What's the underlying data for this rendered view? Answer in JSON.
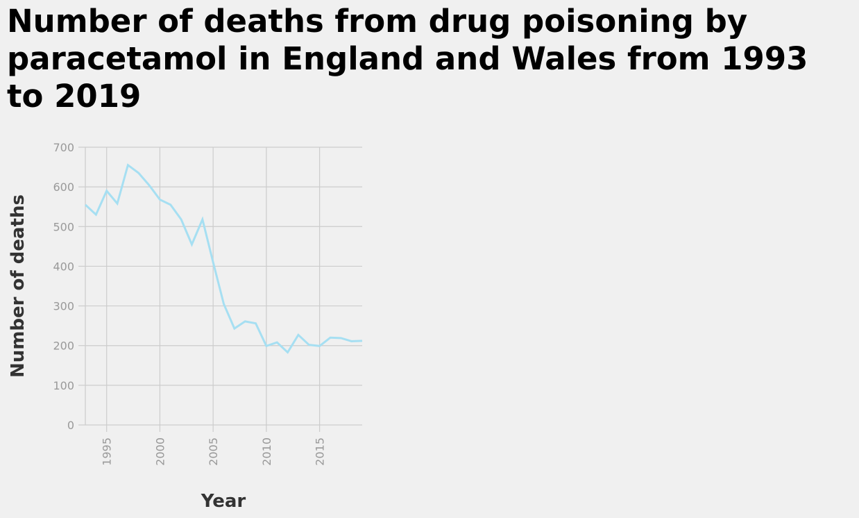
{
  "chart_data": {
    "type": "line",
    "title": "Number of deaths from drug poisoning by paracetamol in England and Wales from 1993 to 2019",
    "xlabel": "Year",
    "ylabel": "Number of deaths",
    "xlim": [
      1993,
      2019
    ],
    "ylim": [
      0,
      700
    ],
    "xticks": [
      1995,
      2000,
      2005,
      2010,
      2015
    ],
    "yticks": [
      0,
      100,
      200,
      300,
      400,
      500,
      600,
      700
    ],
    "grid": true,
    "line_color": "#a6dff2",
    "series": [
      {
        "x": [
          1993,
          1994,
          1995,
          1996,
          1997,
          1998,
          1999,
          2000,
          2001,
          2002,
          2003,
          2004,
          2005,
          2006,
          2007,
          2008,
          2009,
          2010,
          2011,
          2012,
          2013,
          2014,
          2015,
          2016,
          2017,
          2018,
          2019
        ],
        "values": [
          555,
          530,
          590,
          558,
          655,
          635,
          604,
          568,
          555,
          518,
          455,
          518,
          410,
          305,
          243,
          261,
          256,
          199,
          208,
          183,
          227,
          202,
          199,
          220,
          219,
          211,
          212
        ]
      }
    ]
  }
}
